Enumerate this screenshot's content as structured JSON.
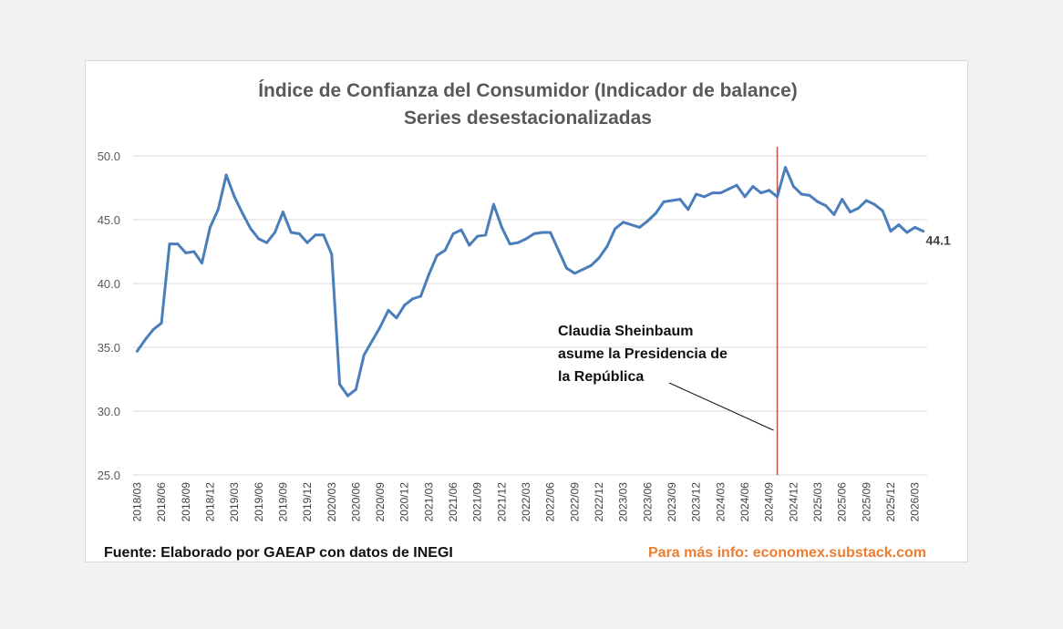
{
  "chart_data": {
    "type": "line",
    "title": "Índice de Confianza del Consumidor (Indicador de balance)",
    "subtitle": "Series desestacionalizadas",
    "xlabel": "",
    "ylabel": "",
    "ylim": [
      25,
      50
    ],
    "y_ticks": [
      "25.0",
      "30.0",
      "35.0",
      "40.0",
      "45.0",
      "50.0"
    ],
    "grid": true,
    "x_tick_labels": [
      "2018/03",
      "2018/06",
      "2018/09",
      "2018/12",
      "2019/03",
      "2019/06",
      "2019/09",
      "2019/12",
      "2020/03",
      "2020/06",
      "2020/09",
      "2020/12",
      "2021/03",
      "2021/06",
      "2021/09",
      "2021/12",
      "2022/03",
      "2022/06",
      "2022/09",
      "2022/12",
      "2023/03",
      "2023/06",
      "2023/09",
      "2023/12",
      "2024/03",
      "2024/06",
      "2024/09",
      "2024/12",
      "2025/03",
      "2025/06",
      "2025/09",
      "2025/12",
      "2026/03"
    ],
    "series": [
      {
        "name": "Índice de Confianza del Consumidor",
        "color": "#4a7ebb",
        "start": "2018/03",
        "values": [
          34.7,
          35.6,
          36.4,
          36.9,
          43.1,
          43.1,
          42.4,
          42.5,
          41.6,
          44.4,
          45.8,
          48.5,
          46.8,
          45.5,
          44.3,
          43.5,
          43.2,
          44.0,
          45.6,
          44.0,
          43.9,
          43.2,
          43.8,
          43.8,
          42.3,
          32.1,
          31.2,
          31.7,
          34.4,
          35.5,
          36.6,
          37.9,
          37.3,
          38.3,
          38.8,
          39.0,
          40.7,
          42.2,
          42.6,
          43.9,
          44.2,
          43.0,
          43.7,
          43.8,
          46.2,
          44.4,
          43.1,
          43.2,
          43.5,
          43.9,
          44.0,
          44.0,
          42.6,
          41.2,
          40.8,
          41.1,
          41.4,
          42.0,
          42.9,
          44.3,
          44.8,
          44.6,
          44.4,
          44.9,
          45.5,
          46.4,
          46.5,
          46.6,
          45.8,
          47.0,
          46.8,
          47.1,
          47.1,
          47.4,
          47.7,
          46.8,
          47.6,
          47.1,
          47.3,
          46.8,
          49.1,
          47.6,
          47.0,
          46.9,
          46.4,
          46.1,
          45.4,
          46.6,
          45.6,
          45.9,
          46.5,
          46.2,
          45.7,
          44.1,
          44.6,
          44.0,
          44.4,
          44.1
        ]
      }
    ],
    "end_label": "44.1",
    "annotation": {
      "lines": [
        "Claudia Sheinbaum",
        "asume la Presidencia de",
        "la República"
      ],
      "event_date": "2024/10",
      "event_line_color": "#c0504d"
    }
  },
  "footer": {
    "source": "Fuente: Elaborado por GAEAP con datos de INEGI",
    "info": "Para más info: economex.substack.com",
    "info_color": "#ed7d31"
  }
}
